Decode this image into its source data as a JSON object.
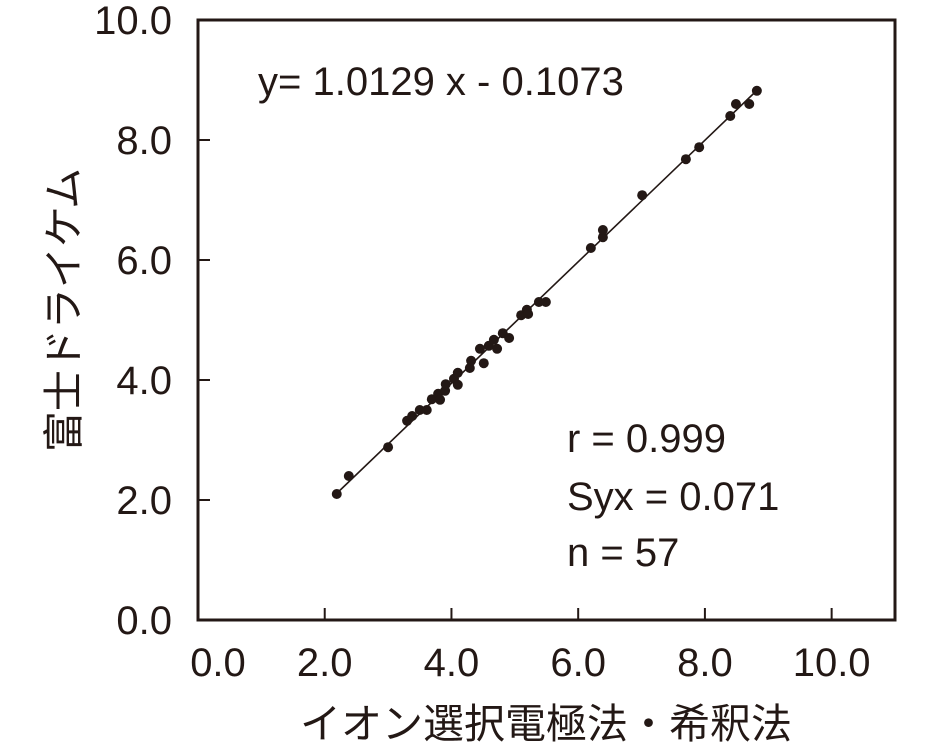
{
  "colors": {
    "ink": "#231815",
    "background": "#ffffff"
  },
  "chart_data": {
    "type": "scatter",
    "xlabel": "イオン選択電極法・希釈法",
    "ylabel": "富士ドライケム",
    "xlim": [
      0,
      11
    ],
    "ylim": [
      0,
      10
    ],
    "xticks": [
      "0.0",
      "2.0",
      "4.0",
      "6.0",
      "8.0",
      "10.0"
    ],
    "yticks": [
      "0.0",
      "2.0",
      "4.0",
      "6.0",
      "8.0",
      "10.0"
    ],
    "grid": false,
    "series": [
      {
        "points": [
          [
            2.19,
            2.1
          ],
          [
            2.38,
            2.4
          ],
          [
            3.0,
            2.88
          ],
          [
            3.3,
            3.32
          ],
          [
            3.38,
            3.4
          ],
          [
            3.5,
            3.5
          ],
          [
            3.61,
            3.5
          ],
          [
            3.69,
            3.68
          ],
          [
            3.79,
            3.77
          ],
          [
            3.82,
            3.67
          ],
          [
            3.9,
            3.82
          ],
          [
            3.91,
            3.93
          ],
          [
            4.04,
            4.02
          ],
          [
            4.1,
            4.12
          ],
          [
            4.1,
            3.92
          ],
          [
            4.29,
            4.2
          ],
          [
            4.31,
            4.32
          ],
          [
            4.45,
            4.52
          ],
          [
            4.51,
            4.28
          ],
          [
            4.59,
            4.57
          ],
          [
            4.67,
            4.67
          ],
          [
            4.72,
            4.52
          ],
          [
            4.81,
            4.78
          ],
          [
            4.91,
            4.7
          ],
          [
            5.1,
            5.08
          ],
          [
            5.19,
            5.17
          ],
          [
            5.21,
            5.1
          ],
          [
            5.38,
            5.3
          ],
          [
            5.49,
            5.3
          ],
          [
            6.2,
            6.2
          ],
          [
            6.39,
            6.38
          ],
          [
            6.39,
            6.5
          ],
          [
            7.01,
            7.08
          ],
          [
            7.7,
            7.68
          ],
          [
            7.91,
            7.88
          ],
          [
            8.4,
            8.4
          ],
          [
            8.49,
            8.6
          ],
          [
            8.7,
            8.6
          ],
          [
            8.82,
            8.82
          ]
        ]
      }
    ],
    "regression": {
      "slope": 1.0129,
      "intercept": -0.1073,
      "x_range": [
        2.2,
        8.8
      ]
    },
    "annotations": {
      "equation": "y= 1.0129 x - 0.1073",
      "r": "r = 0.999",
      "syx": "Syx = 0.071",
      "n": "n = 57"
    }
  }
}
